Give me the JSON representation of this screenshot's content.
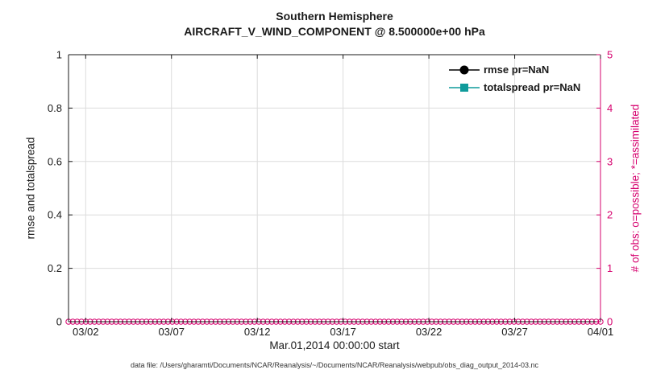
{
  "figure": {
    "title": "Southern Hemisphere",
    "subtitle": "AIRCRAFT_V_WIND_COMPONENT @ 8.500000e+00 hPa",
    "footer": "data file: /Users/gharamti/Documents/NCAR/Reanalysis/~/Documents/NCAR/Reanalysis/webpub/obs_diag_output_2014-03.nc"
  },
  "chart_data": {
    "type": "line",
    "title": "Southern Hemisphere",
    "subtitle": "AIRCRAFT_V_WIND_COMPONENT @ 8.500000e+00 hPa",
    "xlabel": "Mar.01,2014 00:00:00 start",
    "grid": true,
    "left_axis": {
      "label": "rmse and totalspread",
      "color": "#1a1a1a",
      "lim": [
        0,
        1
      ],
      "ticks": [
        0,
        0.2,
        0.4,
        0.6,
        0.8,
        1
      ],
      "tick_labels": [
        "0",
        "0.2",
        "0.4",
        "0.6",
        "0.8",
        "1"
      ]
    },
    "right_axis": {
      "label": "# of obs: o=possible; *=assimilated",
      "color": "#d6006e",
      "lim": [
        0,
        5
      ],
      "ticks": [
        0,
        1,
        2,
        3,
        4,
        5
      ],
      "tick_labels": [
        "0",
        "1",
        "2",
        "3",
        "4",
        "5"
      ]
    },
    "x_axis": {
      "lim_days": [
        0,
        31
      ],
      "tick_days": [
        1,
        6,
        11,
        16,
        21,
        26,
        31
      ],
      "tick_labels": [
        "03/02",
        "03/07",
        "03/12",
        "03/17",
        "03/22",
        "03/27",
        "04/01"
      ]
    },
    "legend": {
      "position": "top-right",
      "entries": [
        {
          "label": "rmse pr=NaN",
          "color": "#000000",
          "marker": "circle"
        },
        {
          "label": "totalspread pr=NaN",
          "color": "#0f9b9b",
          "marker": "square"
        }
      ]
    },
    "series": [
      {
        "name": "rmse",
        "legend_label": "rmse pr=NaN",
        "axis": "left",
        "color": "#000000",
        "marker": "circle",
        "values": "NaN (nothing plotted)"
      },
      {
        "name": "totalspread",
        "legend_label": "totalspread pr=NaN",
        "axis": "left",
        "color": "#0f9b9b",
        "marker": "square",
        "values": "NaN (nothing plotted)"
      },
      {
        "name": "possible_obs",
        "axis": "right",
        "color": "#d6006e",
        "marker": "o",
        "constant_value": 0,
        "marker_count": 124
      }
    ]
  }
}
